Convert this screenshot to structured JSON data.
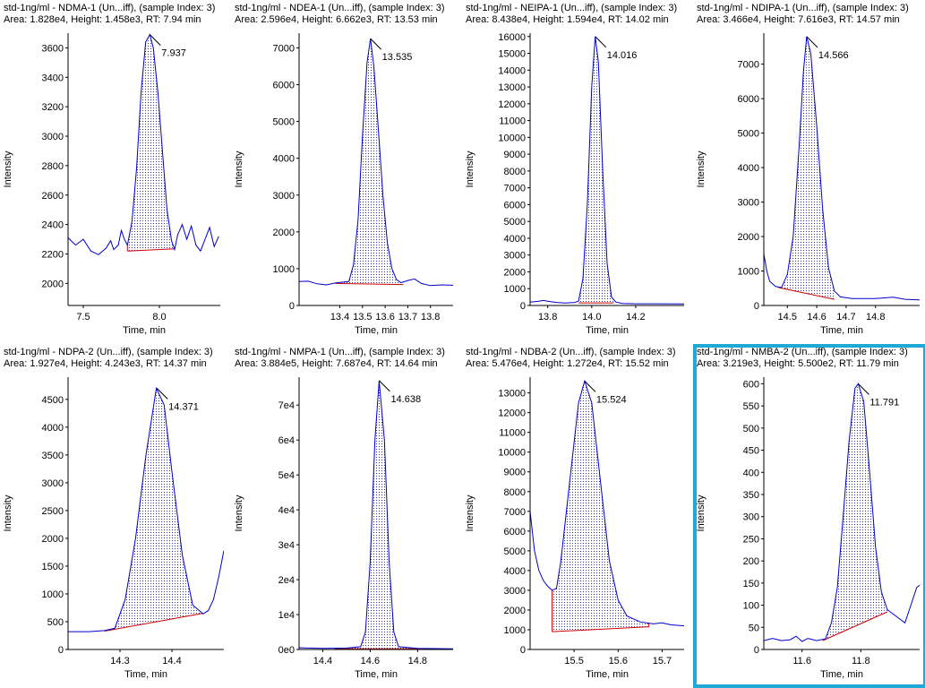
{
  "window": {
    "selected_panel_index": 7
  },
  "colors": {
    "trace": "#0000cc",
    "baseline": "#cc0000",
    "fill_dots": "#3333aa",
    "selection": "#1ea9d6"
  },
  "axis_common": {
    "xlabel": "Time, min",
    "ylabel": "Intensity"
  },
  "chart_data": [
    {
      "type": "line",
      "title": "std-1ng/ml - NDMA-1 (Un...iff), (sample Index: 3)",
      "subtitle": "Area: 1.828e4, Height: 1.458e3, RT: 7.94 min",
      "xlabel": "Time, min",
      "ylabel": "Intensity",
      "xlim": [
        7.4,
        8.4
      ],
      "ylim": [
        1850,
        3700
      ],
      "xticks": [
        7.5,
        8.0
      ],
      "xtick_labels": [
        "7.5",
        "8.0"
      ],
      "yticks": [
        2000,
        2200,
        2400,
        2600,
        2800,
        3000,
        3200,
        3400,
        3600
      ],
      "ytick_labels": [
        "2000",
        "2200",
        "2400",
        "2600",
        "2800",
        "3000",
        "3200",
        "3400",
        "3600"
      ],
      "trace": [
        [
          7.4,
          2310
        ],
        [
          7.45,
          2260
        ],
        [
          7.5,
          2300
        ],
        [
          7.55,
          2220
        ],
        [
          7.6,
          2195
        ],
        [
          7.65,
          2240
        ],
        [
          7.68,
          2290
        ],
        [
          7.7,
          2230
        ],
        [
          7.73,
          2260
        ],
        [
          7.75,
          2360
        ],
        [
          7.77,
          2300
        ],
        [
          7.79,
          2260
        ],
        [
          7.82,
          2420
        ],
        [
          7.85,
          2780
        ],
        [
          7.88,
          3300
        ],
        [
          7.91,
          3640
        ],
        [
          7.937,
          3690
        ],
        [
          7.96,
          3600
        ],
        [
          7.99,
          3300
        ],
        [
          8.02,
          2900
        ],
        [
          8.05,
          2500
        ],
        [
          8.08,
          2290
        ],
        [
          8.1,
          2230
        ],
        [
          8.12,
          2330
        ],
        [
          8.15,
          2400
        ],
        [
          8.18,
          2300
        ],
        [
          8.21,
          2390
        ],
        [
          8.24,
          2260
        ],
        [
          8.27,
          2220
        ],
        [
          8.3,
          2300
        ],
        [
          8.33,
          2380
        ],
        [
          8.36,
          2250
        ],
        [
          8.39,
          2320
        ]
      ],
      "baseline": {
        "x1": 7.79,
        "y1": 2220,
        "x2": 8.1,
        "y2": 2235
      },
      "vertical_edges": true,
      "peak": {
        "x": 7.937,
        "y": 3690,
        "label": "7.937"
      }
    },
    {
      "type": "line",
      "title": "std-1ng/ml - NDEA-1 (Un...iff), (sample Index: 3)",
      "subtitle": "Area: 2.596e4, Height: 6.662e3, RT: 13.53 min",
      "xlabel": "Time, min",
      "ylabel": "Intensity",
      "xlim": [
        13.22,
        13.9
      ],
      "ylim": [
        0,
        7400
      ],
      "xticks": [
        13.4,
        13.5,
        13.6,
        13.7,
        13.8
      ],
      "xtick_labels": [
        "13.4",
        "13.5",
        "13.6",
        "13.7",
        "13.8"
      ],
      "yticks": [
        0,
        1000,
        2000,
        3000,
        4000,
        5000,
        6000,
        7000
      ],
      "ytick_labels": [
        "0",
        "1000",
        "2000",
        "3000",
        "4000",
        "5000",
        "6000",
        "7000"
      ],
      "trace": [
        [
          13.22,
          650
        ],
        [
          13.26,
          660
        ],
        [
          13.3,
          590
        ],
        [
          13.34,
          560
        ],
        [
          13.38,
          610
        ],
        [
          13.42,
          640
        ],
        [
          13.44,
          650
        ],
        [
          13.46,
          1100
        ],
        [
          13.48,
          2300
        ],
        [
          13.5,
          4600
        ],
        [
          13.52,
          6600
        ],
        [
          13.535,
          7250
        ],
        [
          13.55,
          6500
        ],
        [
          13.57,
          4800
        ],
        [
          13.59,
          3000
        ],
        [
          13.61,
          1700
        ],
        [
          13.63,
          1000
        ],
        [
          13.65,
          700
        ],
        [
          13.67,
          620
        ],
        [
          13.7,
          680
        ],
        [
          13.73,
          720
        ],
        [
          13.76,
          600
        ],
        [
          13.8,
          540
        ],
        [
          13.85,
          560
        ],
        [
          13.9,
          550
        ]
      ],
      "baseline": {
        "x1": 13.38,
        "y1": 600,
        "x2": 13.68,
        "y2": 570
      },
      "vertical_edges": false,
      "peak": {
        "x": 13.535,
        "y": 7250,
        "label": "13.535"
      }
    },
    {
      "type": "line",
      "title": "std-1ng/ml - NEIPA-1 (Un...iff), (sample Index: 3)",
      "subtitle": "Area: 8.438e4, Height: 1.594e4, RT: 14.02 min",
      "xlabel": "Time, min",
      "ylabel": "Intensity",
      "xlim": [
        13.72,
        14.42
      ],
      "ylim": [
        0,
        16200
      ],
      "xticks": [
        13.8,
        14.0,
        14.2
      ],
      "xtick_labels": [
        "13.8",
        "14.0",
        "14.2"
      ],
      "yticks": [
        0,
        1000,
        2000,
        3000,
        4000,
        5000,
        6000,
        7000,
        8000,
        9000,
        10000,
        11000,
        12000,
        13000,
        14000,
        15000,
        16000
      ],
      "ytick_labels": [
        "0",
        "1000",
        "2000",
        "3000",
        "4000",
        "5000",
        "6000",
        "7000",
        "8000",
        "9000",
        "10000",
        "11000",
        "12000",
        "13000",
        "14000",
        "15000",
        "16000"
      ],
      "trace": [
        [
          13.72,
          200
        ],
        [
          13.76,
          250
        ],
        [
          13.78,
          300
        ],
        [
          13.8,
          250
        ],
        [
          13.84,
          180
        ],
        [
          13.88,
          150
        ],
        [
          13.92,
          170
        ],
        [
          13.94,
          260
        ],
        [
          13.96,
          1600
        ],
        [
          13.98,
          6000
        ],
        [
          14.0,
          13000
        ],
        [
          14.016,
          16000
        ],
        [
          14.03,
          14500
        ],
        [
          14.05,
          8000
        ],
        [
          14.07,
          2500
        ],
        [
          14.09,
          500
        ],
        [
          14.11,
          200
        ],
        [
          14.14,
          120
        ],
        [
          14.2,
          100
        ],
        [
          14.3,
          100
        ],
        [
          14.42,
          90
        ]
      ],
      "baseline": {
        "x1": 13.94,
        "y1": 150,
        "x2": 14.1,
        "y2": 150
      },
      "vertical_edges": false,
      "peak": {
        "x": 14.016,
        "y": 16000,
        "label": "14.016"
      }
    },
    {
      "type": "line",
      "title": "std-1ng/ml - NDIPA-1 (Un...iff), (sample Index: 3)",
      "subtitle": "Area: 3.466e4, Height: 7.616e3, RT: 14.57 min",
      "xlabel": "Time, min",
      "ylabel": "Intensity",
      "xlim": [
        14.42,
        14.95
      ],
      "ylim": [
        0,
        7900
      ],
      "xticks": [
        14.5,
        14.6,
        14.7,
        14.8
      ],
      "xtick_labels": [
        "14.5",
        "14.6",
        "14.7",
        "14.8"
      ],
      "yticks": [
        0,
        1000,
        2000,
        3000,
        4000,
        5000,
        6000,
        7000
      ],
      "ytick_labels": [
        "0",
        "1000",
        "2000",
        "3000",
        "4000",
        "5000",
        "6000",
        "7000"
      ],
      "trace": [
        [
          14.42,
          1500
        ],
        [
          14.43,
          1000
        ],
        [
          14.44,
          700
        ],
        [
          14.46,
          550
        ],
        [
          14.48,
          520
        ],
        [
          14.5,
          900
        ],
        [
          14.52,
          2000
        ],
        [
          14.54,
          4600
        ],
        [
          14.555,
          6800
        ],
        [
          14.566,
          7800
        ],
        [
          14.58,
          7300
        ],
        [
          14.6,
          5200
        ],
        [
          14.62,
          2800
        ],
        [
          14.64,
          1100
        ],
        [
          14.66,
          420
        ],
        [
          14.68,
          250
        ],
        [
          14.72,
          200
        ],
        [
          14.8,
          200
        ],
        [
          14.86,
          240
        ],
        [
          14.9,
          180
        ],
        [
          14.95,
          160
        ]
      ],
      "baseline": {
        "x1": 14.47,
        "y1": 520,
        "x2": 14.66,
        "y2": 180
      },
      "vertical_edges": false,
      "peak": {
        "x": 14.566,
        "y": 7800,
        "label": "14.566"
      }
    },
    {
      "type": "line",
      "title": "std-1ng/ml - NDPA-2 (Un...iff), (sample Index: 3)",
      "subtitle": "Area: 1.927e4, Height: 4.243e3, RT: 14.37 min",
      "xlabel": "Time, min",
      "ylabel": "Intensity",
      "xlim": [
        14.2,
        14.5
      ],
      "ylim": [
        0,
        4900
      ],
      "xticks": [
        14.3,
        14.4
      ],
      "xtick_labels": [
        "14.3",
        "14.4"
      ],
      "yticks": [
        0,
        500,
        1000,
        1500,
        2000,
        2500,
        3000,
        3500,
        4000,
        4500
      ],
      "ytick_labels": [
        "0",
        "500",
        "1000",
        "1500",
        "2000",
        "2500",
        "3000",
        "3500",
        "4000",
        "4500"
      ],
      "trace": [
        [
          14.2,
          320
        ],
        [
          14.24,
          320
        ],
        [
          14.27,
          340
        ],
        [
          14.29,
          380
        ],
        [
          14.31,
          900
        ],
        [
          14.33,
          2000
        ],
        [
          14.35,
          3500
        ],
        [
          14.37,
          4700
        ],
        [
          14.385,
          4400
        ],
        [
          14.4,
          3200
        ],
        [
          14.42,
          1700
        ],
        [
          14.44,
          800
        ],
        [
          14.46,
          640
        ],
        [
          14.47,
          700
        ],
        [
          14.48,
          900
        ],
        [
          14.49,
          1300
        ],
        [
          14.5,
          1780
        ]
      ],
      "baseline": {
        "x1": 14.27,
        "y1": 330,
        "x2": 14.46,
        "y2": 650
      },
      "vertical_edges": false,
      "peak": {
        "x": 14.371,
        "y": 4700,
        "label": "14.371"
      }
    },
    {
      "type": "line",
      "title": "std-1ng/ml - NMPA-1 (Un...iff), (sample Index: 3)",
      "subtitle": "Area: 3.884e5, Height: 7.687e4, RT: 14.64 min",
      "xlabel": "Time, min",
      "ylabel": "Intensity",
      "xlim": [
        14.3,
        14.95
      ],
      "ylim": [
        0,
        78000
      ],
      "xticks": [
        14.4,
        14.6,
        14.8
      ],
      "xtick_labels": [
        "14.4",
        "14.6",
        "14.8"
      ],
      "yticks": [
        0,
        10000,
        20000,
        30000,
        40000,
        50000,
        60000,
        70000
      ],
      "ytick_labels": [
        "0e0",
        "1e4",
        "2e4",
        "3e4",
        "4e4",
        "5e4",
        "6e4",
        "7e4"
      ],
      "trace": [
        [
          14.3,
          500
        ],
        [
          14.4,
          300
        ],
        [
          14.5,
          400
        ],
        [
          14.56,
          800
        ],
        [
          14.58,
          5000
        ],
        [
          14.6,
          25000
        ],
        [
          14.62,
          60000
        ],
        [
          14.638,
          77000
        ],
        [
          14.66,
          60000
        ],
        [
          14.68,
          25000
        ],
        [
          14.7,
          5000
        ],
        [
          14.72,
          800
        ],
        [
          14.8,
          300
        ],
        [
          14.95,
          200
        ]
      ],
      "baseline": {
        "x1": 14.45,
        "y1": 200,
        "x2": 14.9,
        "y2": 200
      },
      "vertical_edges": false,
      "peak": {
        "x": 14.638,
        "y": 77000,
        "label": "14.638"
      }
    },
    {
      "type": "line",
      "title": "std-1ng/ml - NDBA-2 (Un...iff), (sample Index: 3)",
      "subtitle": "Area: 5.476e4, Height: 1.272e4, RT: 15.52 min",
      "xlabel": "Time, min",
      "ylabel": "Intensity",
      "xlim": [
        15.4,
        15.75
      ],
      "ylim": [
        0,
        13800
      ],
      "xticks": [
        15.5,
        15.6,
        15.7
      ],
      "xtick_labels": [
        "15.5",
        "15.6",
        "15.7"
      ],
      "yticks": [
        0,
        1000,
        2000,
        3000,
        4000,
        5000,
        6000,
        7000,
        8000,
        9000,
        10000,
        11000,
        12000,
        13000
      ],
      "ytick_labels": [
        "0",
        "1000",
        "2000",
        "3000",
        "4000",
        "5000",
        "6000",
        "7000",
        "8000",
        "9000",
        "10000",
        "11000",
        "12000",
        "13000"
      ],
      "trace": [
        [
          15.4,
          7000
        ],
        [
          15.41,
          5000
        ],
        [
          15.42,
          4000
        ],
        [
          15.43,
          3500
        ],
        [
          15.44,
          3200
        ],
        [
          15.45,
          3000
        ],
        [
          15.46,
          3100
        ],
        [
          15.47,
          4500
        ],
        [
          15.49,
          8500
        ],
        [
          15.51,
          12500
        ],
        [
          15.524,
          13600
        ],
        [
          15.54,
          12500
        ],
        [
          15.56,
          8500
        ],
        [
          15.58,
          4500
        ],
        [
          15.6,
          2500
        ],
        [
          15.62,
          1700
        ],
        [
          15.65,
          1400
        ],
        [
          15.68,
          1300
        ],
        [
          15.7,
          1350
        ],
        [
          15.72,
          1250
        ],
        [
          15.75,
          1200
        ]
      ],
      "baseline": {
        "x1": 15.45,
        "y1": 900,
        "x2": 15.67,
        "y2": 1150
      },
      "vertical_edges": true,
      "peak": {
        "x": 15.524,
        "y": 13600,
        "label": "15.524"
      }
    },
    {
      "type": "line",
      "title": "std-1ng/ml - NMBA-2 (Un...iff), (sample Index: 3)",
      "subtitle": "Area: 3.219e3, Height: 5.500e2, RT: 11.79 min",
      "xlabel": "Time, min",
      "ylabel": "Intensity",
      "xlim": [
        11.47,
        12.0
      ],
      "ylim": [
        0,
        615
      ],
      "xticks": [
        11.6,
        11.8
      ],
      "xtick_labels": [
        "11.6",
        "11.8"
      ],
      "yticks": [
        0,
        50,
        100,
        150,
        200,
        250,
        300,
        350,
        400,
        450,
        500,
        550,
        600
      ],
      "ytick_labels": [
        "0",
        "50",
        "100",
        "150",
        "200",
        "250",
        "300",
        "350",
        "400",
        "450",
        "500",
        "550",
        "600"
      ],
      "trace": [
        [
          11.47,
          20
        ],
        [
          11.5,
          25
        ],
        [
          11.53,
          20
        ],
        [
          11.56,
          22
        ],
        [
          11.58,
          30
        ],
        [
          11.6,
          18
        ],
        [
          11.62,
          25
        ],
        [
          11.65,
          20
        ],
        [
          11.68,
          24
        ],
        [
          11.7,
          60
        ],
        [
          11.72,
          140
        ],
        [
          11.74,
          300
        ],
        [
          11.76,
          470
        ],
        [
          11.78,
          590
        ],
        [
          11.791,
          600
        ],
        [
          11.81,
          560
        ],
        [
          11.83,
          400
        ],
        [
          11.85,
          230
        ],
        [
          11.87,
          130
        ],
        [
          11.89,
          90
        ],
        [
          11.91,
          80
        ],
        [
          11.93,
          70
        ],
        [
          11.95,
          60
        ],
        [
          11.97,
          100
        ],
        [
          11.99,
          140
        ],
        [
          12.0,
          145
        ]
      ],
      "baseline": {
        "x1": 11.67,
        "y1": 20,
        "x2": 11.89,
        "y2": 85
      },
      "vertical_edges": false,
      "peak": {
        "x": 11.791,
        "y": 600,
        "label": "11.791"
      }
    }
  ]
}
